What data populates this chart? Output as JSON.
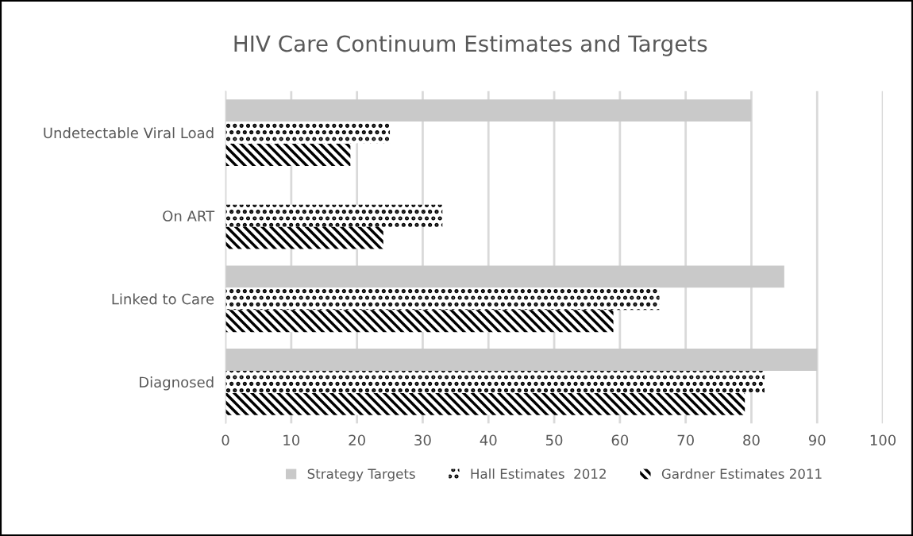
{
  "chart_data": {
    "type": "bar",
    "orientation": "horizontal",
    "title": "HIV Care Continuum Estimates and Targets",
    "categories": [
      "Undetectable Viral Load",
      "On ART",
      "Linked to Care",
      "Diagnosed"
    ],
    "series": [
      {
        "name": "Strategy Targets",
        "color": "#c9c9c9",
        "values": [
          80,
          null,
          85,
          90
        ]
      },
      {
        "name": "Hall Estimates  2012",
        "color": "#000000",
        "values": [
          25,
          33,
          66,
          82
        ]
      },
      {
        "name": "Gardner Estimates 2011",
        "color": "#000000",
        "values": [
          19,
          24,
          59,
          79
        ]
      }
    ],
    "xlim": [
      0,
      100
    ],
    "xticks": [
      0,
      10,
      20,
      30,
      40,
      50,
      60,
      70,
      80,
      90,
      100
    ],
    "grid": "x",
    "legend": "bottom"
  }
}
